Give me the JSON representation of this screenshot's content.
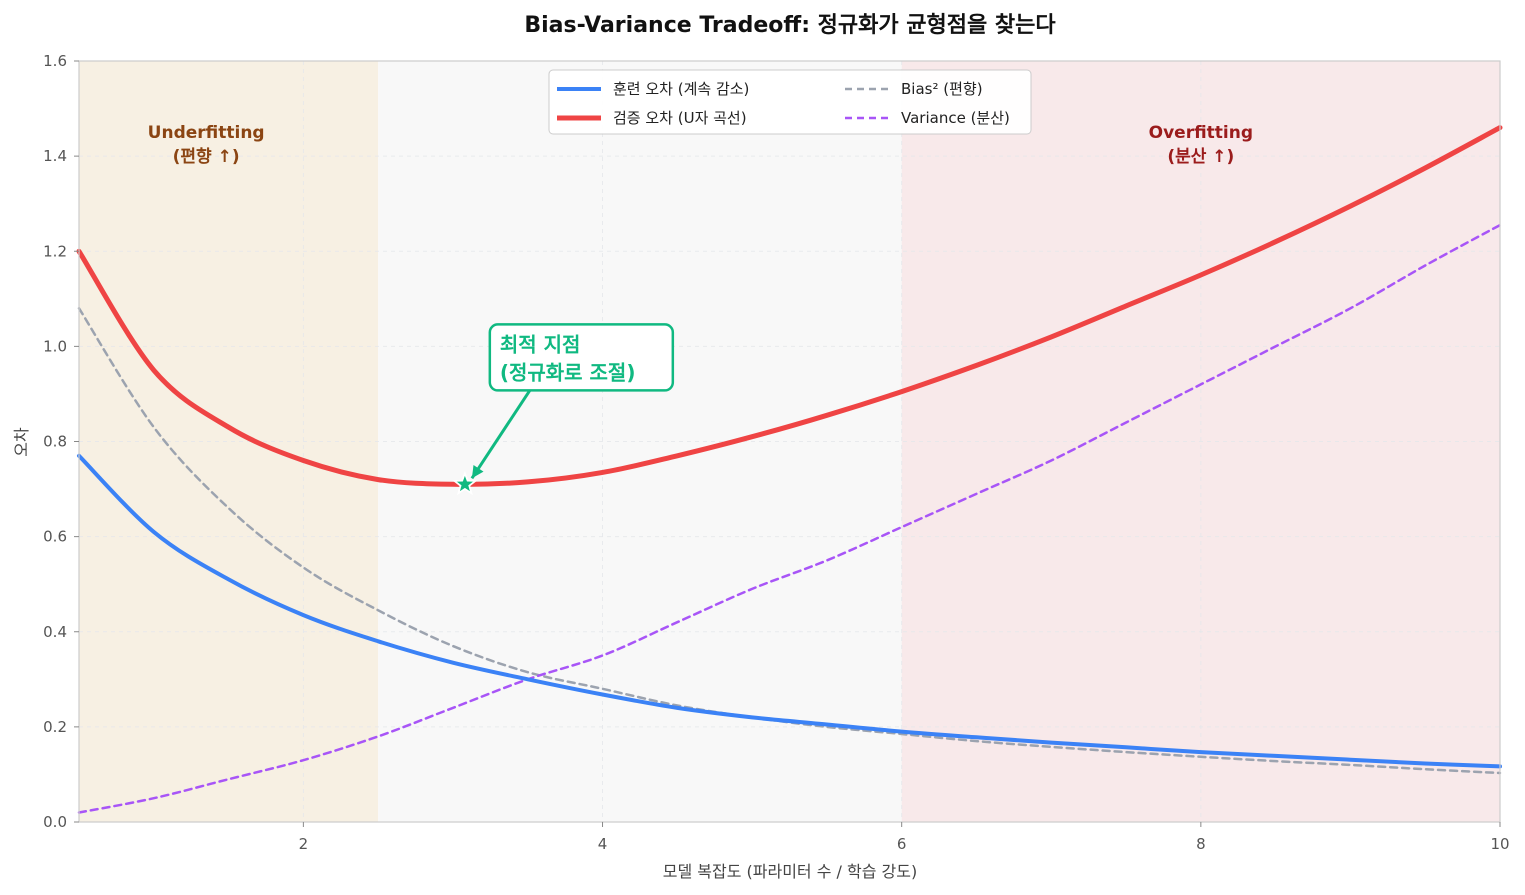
{
  "chart_data": {
    "type": "line",
    "title": "Bias-Variance Tradeoff: 정규화가 균형점을 찾는다",
    "xlabel": "모델 복잡도 (파라미터 수 / 학습 강도)",
    "ylabel": "오차",
    "xlim": [
      0.5,
      10
    ],
    "ylim": [
      0,
      1.6
    ],
    "xticks": [
      2,
      4,
      6,
      8,
      10
    ],
    "yticks": [
      0.0,
      0.2,
      0.4,
      0.6,
      0.8,
      1.0,
      1.2,
      1.4,
      1.6
    ],
    "grid": true,
    "legend_position": "top-center",
    "regions": [
      {
        "id": "underfit",
        "x0": 0.5,
        "x1": 2.5,
        "label_line1": "Underfitting",
        "label_line2": "(편향 ↑)",
        "fill": "#f7f0e3",
        "label_color": "#8b4513",
        "label_x": 1.35,
        "label_y": 1.43
      },
      {
        "id": "middle",
        "x0": 2.5,
        "x1": 6.0,
        "fill": "#f8f8f8"
      },
      {
        "id": "overfit",
        "x0": 6.0,
        "x1": 10,
        "label_line1": "Overfitting",
        "label_line2": "(분산 ↑)",
        "fill": "#f8e9ea",
        "label_color": "#9b1c1c",
        "label_x": 8.0,
        "label_y": 1.43
      }
    ],
    "series": [
      {
        "id": "train",
        "name": "훈련 오차 (계속 감소)",
        "color": "#3b82f6",
        "style": "solid",
        "width": 4,
        "x": [
          0.5,
          1.0,
          1.5,
          2.0,
          2.5,
          3.0,
          3.5,
          4.0,
          4.5,
          5.0,
          5.5,
          6.0,
          6.5,
          7.0,
          7.5,
          8.0,
          8.5,
          9.0,
          9.5,
          10.0
        ],
        "y": [
          0.77,
          0.61,
          0.51,
          0.435,
          0.38,
          0.335,
          0.3,
          0.268,
          0.24,
          0.22,
          0.205,
          0.19,
          0.178,
          0.167,
          0.157,
          0.147,
          0.139,
          0.131,
          0.123,
          0.117
        ]
      },
      {
        "id": "validation",
        "name": "검증 오차 (U자 곡선)",
        "color": "#ef4444",
        "style": "solid",
        "width": 5,
        "x": [
          0.5,
          1.0,
          1.5,
          2.0,
          2.5,
          3.0,
          3.5,
          4.0,
          4.5,
          5.0,
          5.5,
          6.0,
          6.5,
          7.0,
          7.5,
          8.0,
          8.5,
          9.0,
          9.5,
          10.0
        ],
        "y": [
          1.2,
          0.95,
          0.83,
          0.76,
          0.72,
          0.71,
          0.715,
          0.735,
          0.77,
          0.81,
          0.855,
          0.905,
          0.96,
          1.02,
          1.085,
          1.15,
          1.22,
          1.295,
          1.375,
          1.46
        ]
      },
      {
        "id": "bias",
        "name": "Bias² (편향)",
        "color": "#9ca3af",
        "style": "dashed",
        "width": 2.5,
        "x": [
          0.5,
          1.0,
          1.5,
          2.0,
          2.5,
          3.0,
          3.5,
          4.0,
          4.5,
          5.0,
          5.5,
          6.0,
          6.5,
          7.0,
          7.5,
          8.0,
          8.5,
          9.0,
          9.5,
          10.0
        ],
        "y": [
          1.08,
          0.83,
          0.66,
          0.535,
          0.445,
          0.37,
          0.315,
          0.28,
          0.245,
          0.22,
          0.2,
          0.185,
          0.17,
          0.158,
          0.147,
          0.137,
          0.128,
          0.12,
          0.111,
          0.103
        ]
      },
      {
        "id": "variance",
        "name": "Variance (분산)",
        "color": "#a855f7",
        "style": "dashed",
        "width": 2.5,
        "x": [
          0.5,
          1.0,
          1.5,
          2.0,
          2.5,
          3.0,
          3.5,
          4.0,
          4.5,
          5.0,
          5.5,
          6.0,
          6.5,
          7.0,
          7.5,
          8.0,
          8.5,
          9.0,
          9.5,
          10.0
        ],
        "y": [
          0.02,
          0.05,
          0.09,
          0.13,
          0.18,
          0.24,
          0.3,
          0.35,
          0.42,
          0.49,
          0.55,
          0.62,
          0.69,
          0.76,
          0.84,
          0.92,
          1.0,
          1.08,
          1.17,
          1.255
        ]
      }
    ],
    "annotation": {
      "text_line1": "최적 지점",
      "text_line2": "(정규화로 조절)",
      "point": {
        "x": 3.08,
        "y": 0.71
      },
      "text_pos": {
        "x": 3.3,
        "y": 0.92
      },
      "color": "#10b981"
    }
  }
}
